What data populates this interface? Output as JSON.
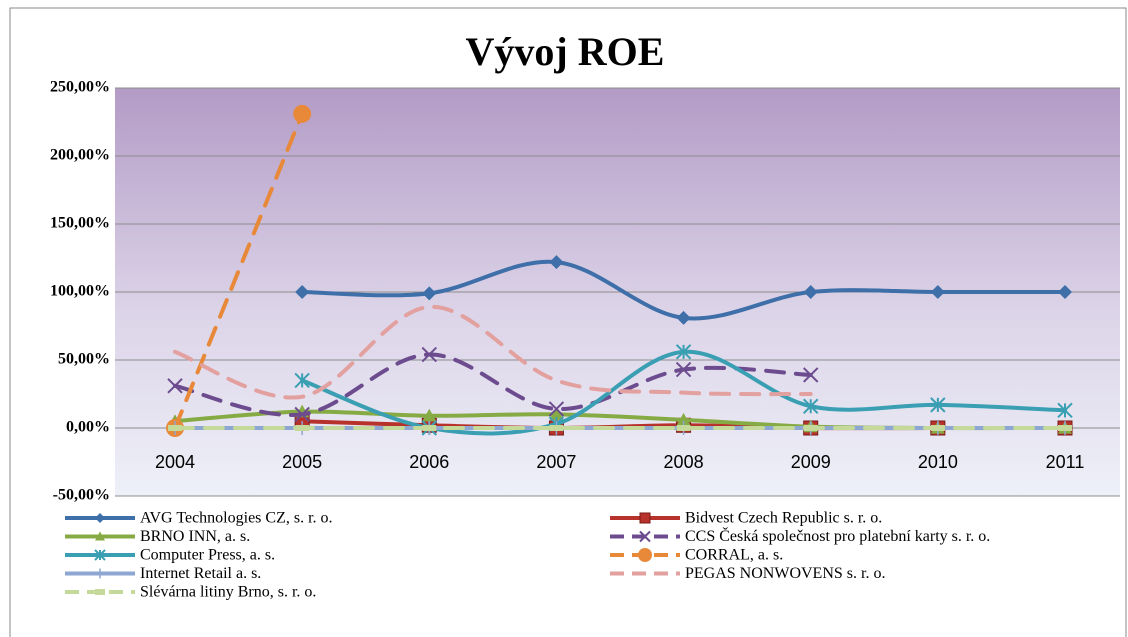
{
  "chart_data": {
    "type": "line",
    "title": "Vývoj ROE",
    "categories": [
      "2004",
      "2005",
      "2006",
      "2007",
      "2008",
      "2009",
      "2010",
      "2011"
    ],
    "ylim": [
      -50,
      250
    ],
    "yticks": [
      {
        "value": -50,
        "label": "-50,00%"
      },
      {
        "value": 0,
        "label": "0,00%"
      },
      {
        "value": 50,
        "label": "50,00%"
      },
      {
        "value": 100,
        "label": "100,00%"
      },
      {
        "value": 150,
        "label": "150,00%"
      },
      {
        "value": 200,
        "label": "200,00%"
      },
      {
        "value": 250,
        "label": "250,00%"
      }
    ],
    "grid": true,
    "smooth": true,
    "legend": "bottom",
    "series": [
      {
        "name": "AVG Technologies CZ, s. r. o.",
        "color": "#3f6fa9",
        "marker": "diamond",
        "dashed": false,
        "values": [
          null,
          100,
          99,
          122,
          81,
          100,
          100,
          100
        ]
      },
      {
        "name": "Bidvest Czech Republic s. r. o.",
        "color": "#b8322c",
        "marker": "square",
        "dashed": false,
        "values": [
          null,
          5,
          2,
          0,
          2,
          0,
          0,
          0
        ]
      },
      {
        "name": "BRNO INN, a. s.",
        "color": "#86ab45",
        "marker": "triangle",
        "dashed": false,
        "values": [
          5,
          12,
          9,
          10,
          6,
          1,
          0,
          0
        ]
      },
      {
        "name": "CCS Česká společnost pro platební karty s. r. o.",
        "color": "#6c4c8e",
        "marker": "x",
        "dashed": true,
        "values": [
          31,
          10,
          54,
          14,
          43,
          39,
          null,
          null
        ]
      },
      {
        "name": "Computer Press, a. s.",
        "color": "#3a9fb2",
        "marker": "asterisk",
        "dashed": false,
        "values": [
          null,
          35,
          0,
          3,
          56,
          16,
          17,
          13
        ]
      },
      {
        "name": "CORRAL, a. s.",
        "color": "#e8893a",
        "marker": "circle",
        "dashed": true,
        "values": [
          0,
          231,
          null,
          null,
          null,
          null,
          null,
          null
        ]
      },
      {
        "name": "Internet Retail a. s.",
        "color": "#8ea6d2",
        "marker": "plus",
        "dashed": false,
        "values": [
          0,
          0,
          0,
          0,
          0,
          0,
          0,
          0
        ]
      },
      {
        "name": "PEGAS NONWOVENS s. r. o.",
        "color": "#e2a09e",
        "marker": "none",
        "dashed": true,
        "values": [
          56,
          23,
          89,
          35,
          26,
          25,
          null,
          null
        ]
      },
      {
        "name": "Slévárna litiny Brno, s. r. o.",
        "color": "#c5d99b",
        "marker": "dash",
        "dashed": true,
        "values": [
          0,
          0,
          0,
          0,
          0,
          0,
          0,
          0
        ]
      }
    ]
  }
}
